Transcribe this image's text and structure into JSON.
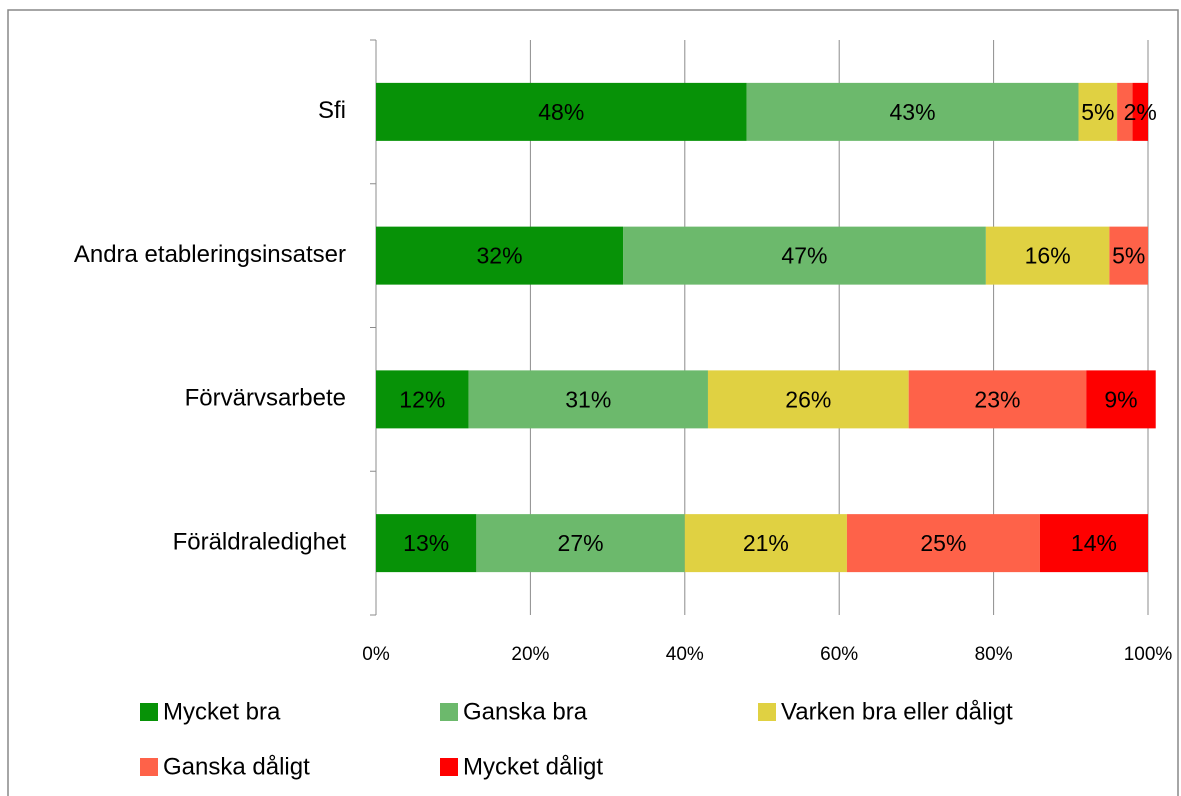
{
  "chart_data": {
    "type": "stacked-barh",
    "categories": [
      "Sfi",
      "Andra etableringsinsatser",
      "Förvärvsarbete",
      "Föräldraledighet"
    ],
    "series": [
      {
        "name": "Mycket bra",
        "color": "#079207",
        "values": [
          48,
          32,
          12,
          13
        ],
        "value_labels": [
          "48%",
          "32%",
          "12%",
          "13%"
        ]
      },
      {
        "name": "Ganska bra",
        "color": "#6cb96c",
        "values": [
          43,
          47,
          31,
          27
        ],
        "value_labels": [
          "43%",
          "47%",
          "31%",
          "27%"
        ]
      },
      {
        "name": "Varken bra eller dåligt",
        "color": "#e0d142",
        "values": [
          5,
          16,
          26,
          21
        ],
        "value_labels": [
          "5%",
          "16%",
          "26%",
          "21%"
        ]
      },
      {
        "name": "Ganska dåligt",
        "color": "#fe6249",
        "values": [
          2,
          5,
          23,
          25
        ],
        "value_labels": [
          null,
          "5%",
          "23%",
          "25%"
        ]
      },
      {
        "name": "Mycket dåligt",
        "color": "#fe0000",
        "values": [
          2,
          0,
          9,
          14
        ],
        "value_labels": [
          "2%",
          null,
          "9%",
          "14%"
        ]
      }
    ],
    "xlim": [
      0,
      100
    ],
    "xticks": [
      {
        "value": 0,
        "label": "0%"
      },
      {
        "value": 20,
        "label": "20%"
      },
      {
        "value": 40,
        "label": "40%"
      },
      {
        "value": 60,
        "label": "60%"
      },
      {
        "value": 80,
        "label": "80%"
      },
      {
        "value": 100,
        "label": "100%"
      }
    ],
    "grid": true,
    "legend": "bottom"
  }
}
